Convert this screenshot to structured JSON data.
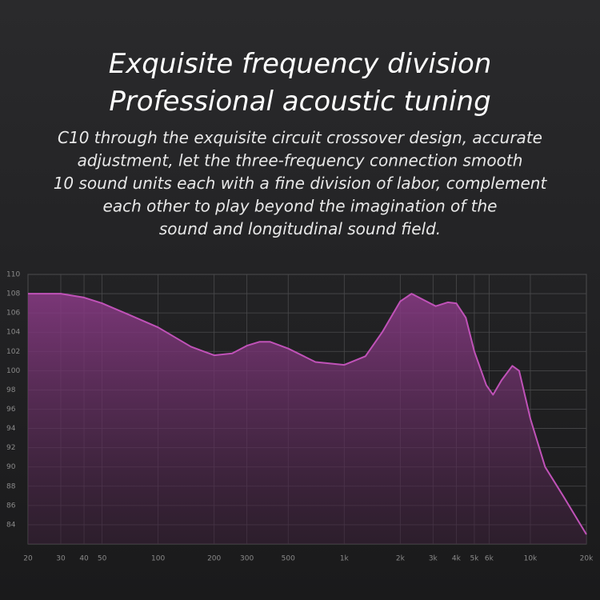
{
  "chart_data": {
    "type": "area",
    "title": [
      "Exquisite frequency division",
      "Professional acoustic tuning"
    ],
    "subtitle": [
      "C10 through the exquisite circuit crossover design, accurate",
      "adjustment, let the three-frequency connection smooth",
      "10 sound units each with a fine division of labor, complement",
      "each other to play beyond the imagination of the",
      "sound and longitudinal sound field."
    ],
    "x": [
      20,
      30,
      40,
      50,
      70,
      100,
      150,
      200,
      250,
      300,
      350,
      400,
      500,
      700,
      1000,
      1300,
      1600,
      2000,
      2300,
      2700,
      3100,
      3600,
      4000,
      4500,
      5000,
      5800,
      6300,
      7000,
      8000,
      8700,
      10000,
      12000,
      15000,
      20000
    ],
    "series": [
      {
        "color": "#c052b8",
        "values": [
          108,
          108,
          107.6,
          107,
          105.8,
          104.5,
          102.5,
          101.6,
          101.8,
          102.6,
          103,
          103,
          102.3,
          100.9,
          100.6,
          101.5,
          104,
          107.2,
          108,
          107.3,
          106.7,
          107.1,
          107,
          105.5,
          102,
          98.5,
          97.5,
          99,
          100.5,
          100,
          95,
          90,
          87,
          83
        ]
      }
    ],
    "xscale": "log",
    "xlim": [
      20,
      20000
    ],
    "xticks": [
      20,
      30,
      40,
      50,
      100,
      200,
      300,
      500,
      {
        "value": 1000,
        "label": "1k"
      },
      {
        "value": 2000,
        "label": "2k"
      },
      {
        "value": 3000,
        "label": "3k"
      },
      {
        "value": 4000,
        "label": "4k"
      },
      {
        "value": 5000,
        "label": "5k"
      },
      {
        "value": 6000,
        "label": "6k"
      },
      {
        "value": 10000,
        "label": "10k"
      },
      {
        "value": 20000,
        "label": "20k"
      }
    ],
    "ylim": [
      82,
      110
    ],
    "yticks": [
      84,
      86,
      88,
      90,
      92,
      94,
      96,
      98,
      100,
      102,
      104,
      106,
      108,
      110
    ],
    "grid": true
  }
}
